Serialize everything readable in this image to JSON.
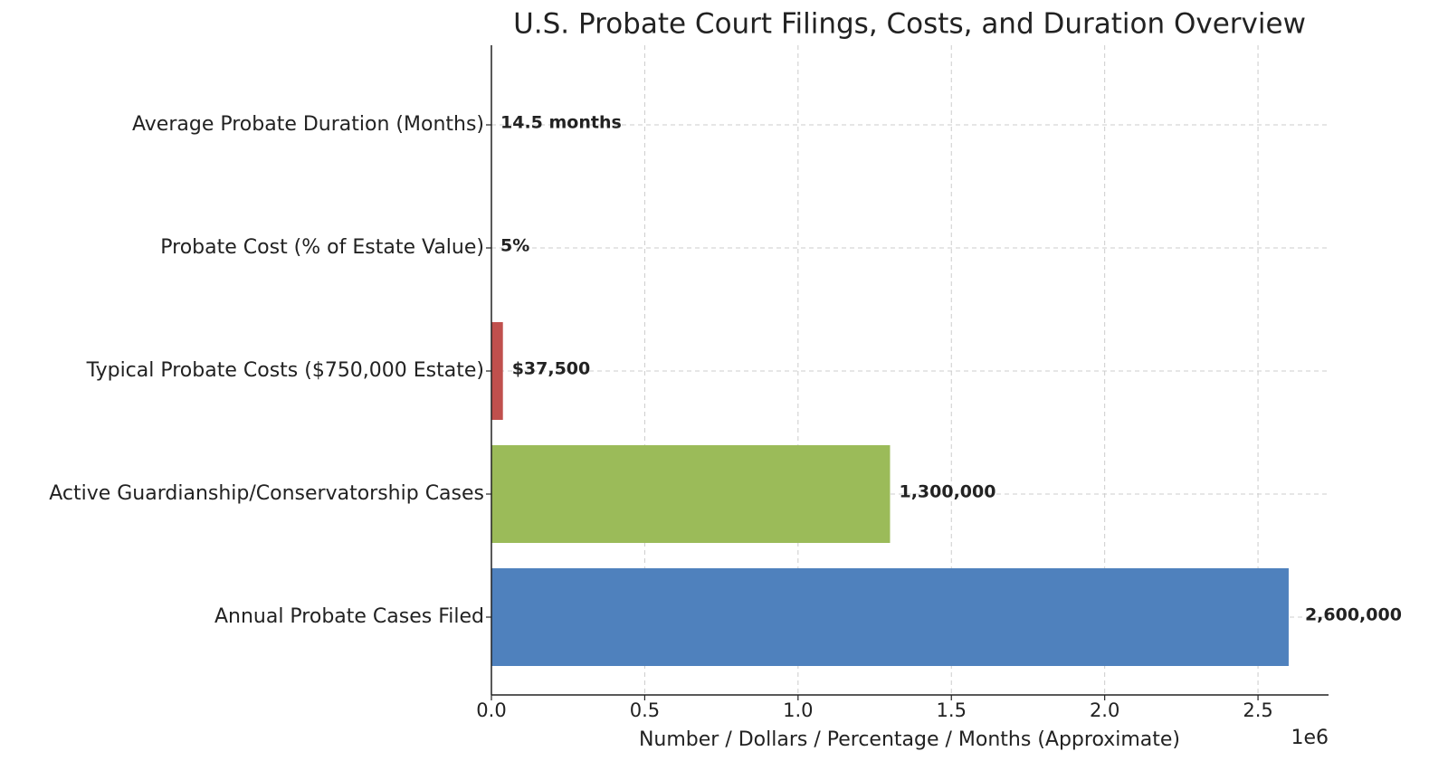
{
  "chart_data": {
    "type": "barh",
    "title": "U.S. Probate Court Filings, Costs, and Duration Overview",
    "x_label": "Number / Dollars / Percentage / Months (Approximate)",
    "x_offset_label": "1e6",
    "categories": [
      "Annual Probate Cases Filed",
      "Active Guardianship/Conservatorship Cases",
      "Typical Probate Costs ($750,000 Estate)",
      "Probate Cost (% of Estate Value)",
      "Average Probate Duration (Months)"
    ],
    "values": [
      2600000,
      1300000,
      37500,
      5,
      14.5
    ],
    "value_labels": [
      "2,600,000",
      "1,300,000",
      "$37,500",
      "5%",
      "14.5 months"
    ],
    "colors": [
      "#4f81bd",
      "#9bbb59",
      "#c0504d",
      "#8064a2",
      "#4bacc6"
    ],
    "xlim": [
      0,
      2730000
    ],
    "xticks": [
      {
        "value": 0,
        "label": "0.0"
      },
      {
        "value": 500000,
        "label": "0.5"
      },
      {
        "value": 1000000,
        "label": "1.0"
      },
      {
        "value": 1500000,
        "label": "1.5"
      },
      {
        "value": 2000000,
        "label": "2.0"
      },
      {
        "value": 2500000,
        "label": "2.5"
      }
    ],
    "grid": true
  }
}
